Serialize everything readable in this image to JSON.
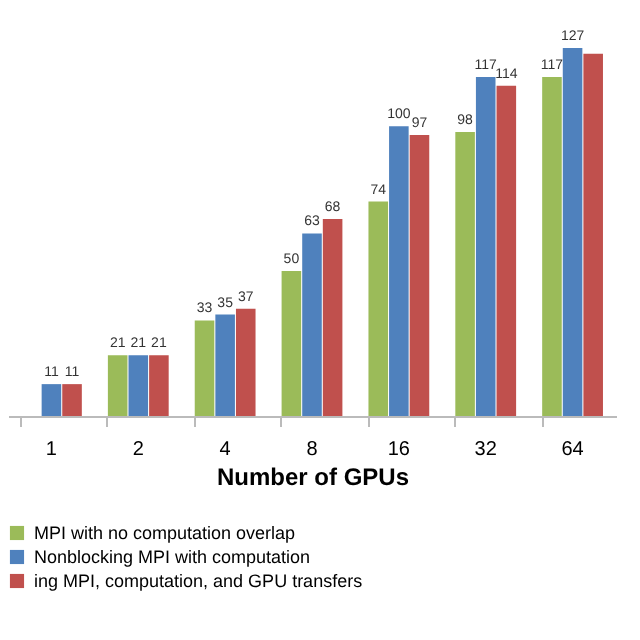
{
  "chart_data": {
    "type": "bar",
    "xlabel": "Number of GPUs",
    "categories": [
      "1",
      "2",
      "4",
      "8",
      "16",
      "32",
      "64"
    ],
    "series": [
      {
        "name": "MPI with no computation overlap",
        "color": "#9bbb59",
        "values": [
          null,
          21,
          33,
          50,
          74,
          98,
          117
        ],
        "value_labels": [
          null,
          "21",
          "33",
          "50",
          "74",
          "98",
          "117"
        ]
      },
      {
        "name": "Nonblocking MPI with computation",
        "color": "#4f81bd",
        "values": [
          11,
          21,
          35,
          63,
          100,
          117,
          127
        ],
        "value_labels": [
          "11",
          "21",
          "35",
          "63",
          "100",
          "117",
          "127"
        ]
      },
      {
        "name": "ing MPI, computation, and GPU transfers",
        "color": "#c0504d",
        "values": [
          11,
          21,
          37,
          68,
          97,
          114,
          125
        ],
        "value_labels": [
          "11",
          "21",
          "37",
          "68",
          "97",
          "114",
          null
        ]
      }
    ],
    "grid": false,
    "legend": "bottom"
  }
}
